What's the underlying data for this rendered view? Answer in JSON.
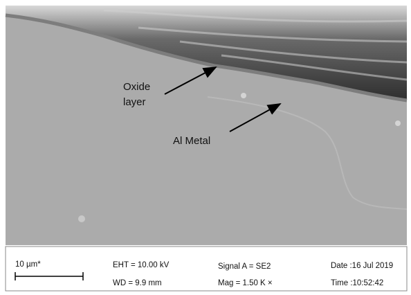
{
  "annotations": {
    "oxide": [
      "Oxide",
      "layer"
    ],
    "metal": "Al Metal"
  },
  "info_bar": {
    "scale": "10 µm*",
    "eht": "EHT = 10.00 kV",
    "wd": "WD =  9.9 mm",
    "signal": "Signal A = SE2",
    "mag": "Mag =  1.50 K ×",
    "date": "Date :16 Jul 2019",
    "time": "Time :10:52:42"
  }
}
